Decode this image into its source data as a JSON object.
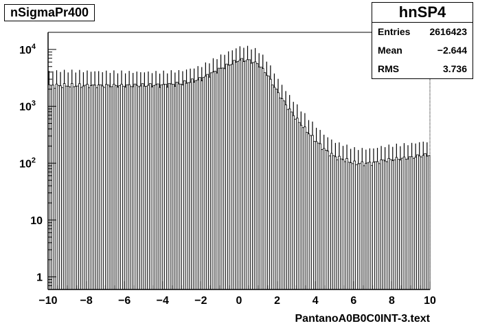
{
  "histogram_title": "nSigmaPr400",
  "stats": {
    "name": "hnSP4",
    "rows": [
      {
        "label": "Entries",
        "value": "2616423"
      },
      {
        "label": "Mean",
        "value": "−2.644"
      },
      {
        "label": "RMS",
        "value": "3.736"
      }
    ]
  },
  "chart_data": {
    "type": "bar",
    "style": "step-histogram-with-error-bars",
    "xlabel": "PantanoA0B0C0INT-3.text",
    "ylabel": "",
    "xlim": [
      -10,
      10
    ],
    "ylim": [
      0.6,
      20000
    ],
    "y_scale": "log",
    "x_ticks": [
      {
        "value": -10,
        "label": "−10"
      },
      {
        "value": -8,
        "label": "−8"
      },
      {
        "value": -6,
        "label": "−6"
      },
      {
        "value": -4,
        "label": "−4"
      },
      {
        "value": -2,
        "label": "−2"
      },
      {
        "value": 0,
        "label": "0"
      },
      {
        "value": 2,
        "label": "2"
      },
      {
        "value": 4,
        "label": "4"
      },
      {
        "value": 6,
        "label": "6"
      },
      {
        "value": 8,
        "label": "8"
      },
      {
        "value": 10,
        "label": "10"
      }
    ],
    "y_ticks": [
      {
        "value": 1,
        "base": "1",
        "exp": ""
      },
      {
        "value": 10,
        "base": "10",
        "exp": ""
      },
      {
        "value": 100,
        "base": "10",
        "exp": "2"
      },
      {
        "value": 1000,
        "base": "10",
        "exp": "3"
      },
      {
        "value": 10000,
        "base": "10",
        "exp": "4"
      }
    ],
    "profile": [
      [
        -10,
        2300
      ],
      [
        -8,
        2300
      ],
      [
        -6,
        2300
      ],
      [
        -4,
        2350
      ],
      [
        -3,
        2500
      ],
      [
        -2,
        3000
      ],
      [
        -1,
        4500
      ],
      [
        0,
        6500
      ],
      [
        0.5,
        6400
      ],
      [
        1,
        5500
      ],
      [
        1.5,
        3500
      ],
      [
        2,
        1800
      ],
      [
        2.5,
        1000
      ],
      [
        3,
        600
      ],
      [
        3.5,
        380
      ],
      [
        4,
        250
      ],
      [
        4.5,
        170
      ],
      [
        5,
        130
      ],
      [
        5.5,
        115
      ],
      [
        6,
        100
      ],
      [
        6.5,
        98
      ],
      [
        7,
        100
      ],
      [
        7.5,
        110
      ],
      [
        8,
        115
      ],
      [
        8.5,
        120
      ],
      [
        9,
        125
      ],
      [
        9.5,
        135
      ],
      [
        10,
        140
      ]
    ],
    "grid": false,
    "legend": "none"
  }
}
